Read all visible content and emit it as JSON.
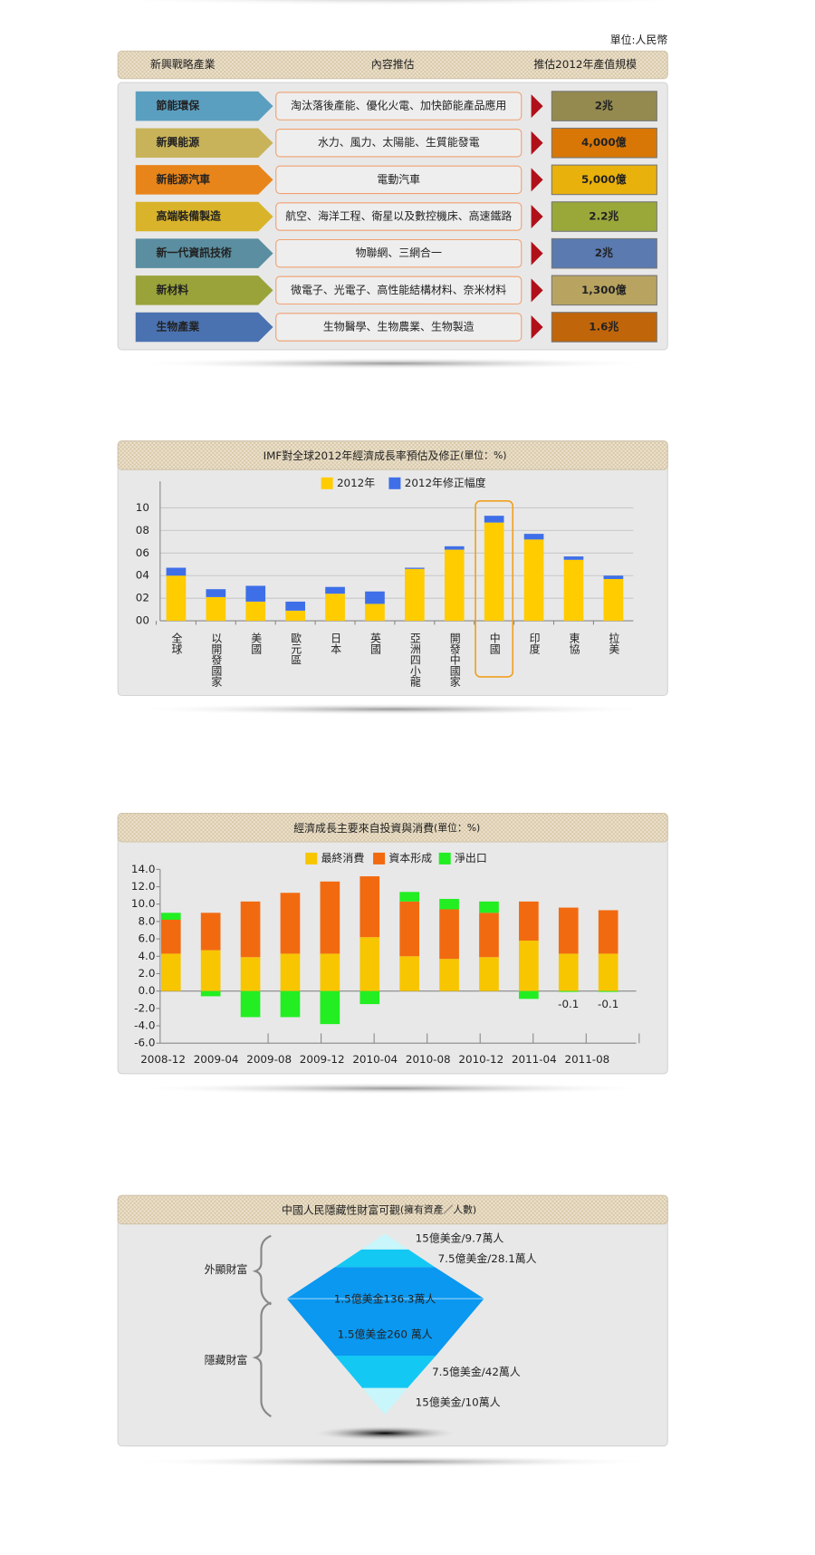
{
  "table": {
    "unit": "單位:人民幣",
    "headers": [
      "新興戰略產業",
      "內容推估",
      "推估2012年產值規模"
    ],
    "rows": [
      {
        "name": "節能環保",
        "content": "淘汰落後產能、優化火電、加快節能產品應用",
        "value": "2兆",
        "color": "#5b9fc0",
        "value_color": "#948a4f"
      },
      {
        "name": "新興能源",
        "content": "水力、風力、太陽能、生質能發電",
        "value": "4,000億",
        "color": "#c8b35a",
        "value_color": "#d97706"
      },
      {
        "name": "新能源汽車",
        "content": "電動汽車",
        "value": "5,000億",
        "color": "#e8851a",
        "value_color": "#e8b10c"
      },
      {
        "name": "高端裝備製造",
        "content": "航空、海洋工程、衛星以及數控機床、高速鐵路",
        "value": "2.2兆",
        "color": "#d9b32a",
        "value_color": "#9aa83a"
      },
      {
        "name": "新一代資訊技術",
        "content": "物聯網、三網合一",
        "value": "2兆",
        "color": "#5a8ea0",
        "value_color": "#5a7ab0"
      },
      {
        "name": "新材料",
        "content": "微電子、光電子、高性能結構材料、奈米材料",
        "value": "1,300億",
        "color": "#9aa33a",
        "value_color": "#b8a460"
      },
      {
        "name": "生物產業",
        "content": "生物醫學、生物農業、生物製造",
        "value": "1.6兆",
        "color": "#4a72b0",
        "value_color": "#c0650a"
      }
    ]
  },
  "chart_data": [
    {
      "type": "bar",
      "stacked": true,
      "title": "IMF對全球2012年經濟成長率預估及修正",
      "subtitle": "(單位：%)",
      "categories": [
        "全球",
        "以開發國家",
        "美國",
        "歐元區",
        "日本",
        "英國",
        "亞洲四小龍",
        "開發中國家",
        "中國",
        "印度",
        "東協",
        "拉美"
      ],
      "series": [
        {
          "name": "2012年",
          "color": "#ffcc00",
          "values": [
            4.0,
            2.1,
            1.7,
            0.9,
            2.4,
            1.5,
            4.6,
            6.3,
            8.7,
            7.2,
            5.4,
            3.7
          ]
        },
        {
          "name": "2012年修正幅度",
          "color": "#3f6fe8",
          "values": [
            0.7,
            0.7,
            1.4,
            0.8,
            0.6,
            1.1,
            0.1,
            0.3,
            0.6,
            0.5,
            0.3,
            0.3
          ]
        }
      ],
      "ylim": [
        0,
        10
      ],
      "yticks": [
        {
          "value": 0,
          "label": "00"
        },
        {
          "value": 2,
          "label": "02"
        },
        {
          "value": 4,
          "label": "04"
        },
        {
          "value": 6,
          "label": "06"
        },
        {
          "value": 8,
          "label": "08"
        },
        {
          "value": 10,
          "label": "10"
        }
      ],
      "grid": true
    },
    {
      "type": "bar",
      "stacked": true,
      "title": "經濟成長主要來自投資與消費",
      "subtitle": "(單位：%)",
      "x": [
        "2008-12",
        "2009-03",
        "2009-06",
        "2009-09",
        "2009-12",
        "2010-03",
        "2010-06",
        "2010-09",
        "2010-12",
        "2011-03",
        "2011-06",
        "2011-09"
      ],
      "xlim": [
        "2008-12",
        "2011-12"
      ],
      "xticks": [
        "2008-12",
        "2009-04",
        "2009-08",
        "2009-12",
        "2010-04",
        "2010-08",
        "2010-12",
        "2011-04",
        "2011-08"
      ],
      "series": [
        {
          "name": "最終消費",
          "color": "#f7c600",
          "values": [
            4.3,
            4.7,
            3.9,
            4.3,
            4.3,
            6.2,
            4.0,
            3.7,
            3.9,
            5.8,
            4.3,
            4.3
          ]
        },
        {
          "name": "資本形成",
          "color": "#f26a10",
          "values": [
            3.9,
            4.3,
            6.4,
            7.0,
            8.3,
            7.0,
            6.3,
            5.7,
            5.1,
            4.5,
            5.3,
            5.0
          ]
        },
        {
          "name": "淨出口",
          "color": "#22ee22",
          "values": [
            0.8,
            -0.6,
            -3.0,
            -3.0,
            -3.8,
            -1.5,
            1.1,
            1.2,
            1.3,
            -0.9,
            -0.1,
            -0.1
          ],
          "value_labels": [
            null,
            null,
            null,
            null,
            null,
            null,
            null,
            null,
            null,
            null,
            "-0.1",
            "-0.1"
          ]
        }
      ],
      "ylim": [
        -6,
        14
      ],
      "yticks": [
        {
          "value": 14,
          "label": "14.0"
        },
        {
          "value": 12,
          "label": "12.0"
        },
        {
          "value": 10,
          "label": "10.0"
        },
        {
          "value": 8,
          "label": "8.0"
        },
        {
          "value": 6,
          "label": "6.0"
        },
        {
          "value": 4,
          "label": "4.0"
        },
        {
          "value": 2,
          "label": "2.0"
        },
        {
          "value": 0,
          "label": "0.0"
        },
        {
          "value": -2,
          "label": "-2.0"
        },
        {
          "value": -4,
          "label": "-4.0"
        },
        {
          "value": -6,
          "label": "-6.0"
        }
      ]
    }
  ],
  "pyramid": {
    "title": "中國人民隱藏性財富可觀",
    "subtitle": "(擁有資產／人數)",
    "groups": [
      "外顯財富",
      "隱藏財富"
    ],
    "tiers": [
      "15億美金/9.7萬人",
      "7.5億美金/28.1萬人",
      "1.5億美金136.3萬人",
      "1.5億美金260 萬人",
      "7.5億美金/42萬人",
      "15億美金/10萬人"
    ]
  }
}
